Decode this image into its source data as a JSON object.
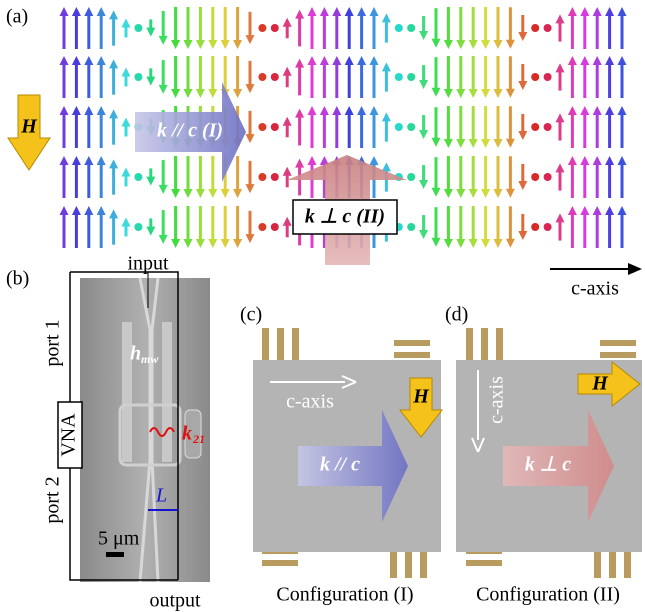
{
  "panel_a": {
    "label": "(a)",
    "field": "H",
    "wave_parallel": "k // c (I)",
    "wave_perp": "k ⊥ c (II)",
    "axis": "c-axis"
  },
  "panel_b": {
    "label": "(b)",
    "input": "input",
    "output": "output",
    "port_1": "port 1",
    "port_2": "port 2",
    "analyzer": "VNA",
    "field_symbol": "h",
    "field_subscript": "mw",
    "wave_symbol": "k",
    "wave_subscript": "21",
    "length": "L",
    "scale": "5 μm"
  },
  "panel_c": {
    "label": "(c)",
    "axis": "c-axis",
    "field": "H",
    "wave": "k // c",
    "caption": "Configuration (I)"
  },
  "panel_d": {
    "label": "(d)",
    "axis": "c-axis",
    "field": "H",
    "wave": "k ⊥ c",
    "caption": "Configuration (II)"
  }
}
